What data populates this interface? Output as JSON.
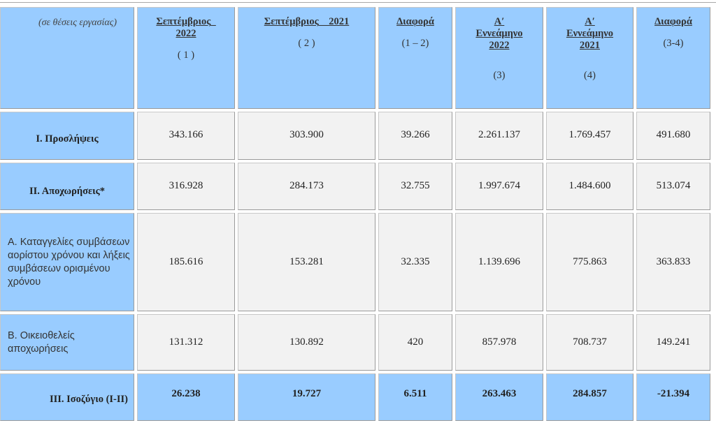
{
  "header": {
    "unit": "(σε θέσεις εργασίας)",
    "columns": [
      {
        "title": "Σεπτέμβριος_",
        "title2": "2022",
        "sub": "( 1 )"
      },
      {
        "title": "Σεπτέμβριος__2021",
        "title2": "",
        "sub": "( 2 )"
      },
      {
        "title": "Διαφορά",
        "title2": "",
        "sub": "(1 – 2)"
      },
      {
        "title": "Α′",
        "title2": "Εννεάμηνο",
        "title3": "2022",
        "sub": "(3)"
      },
      {
        "title": "Α′",
        "title2": "Εννεάμηνο",
        "title3": "2021",
        "sub": "(4)"
      },
      {
        "title": "Διαφορά",
        "title2": "",
        "sub": "(3-4)"
      }
    ]
  },
  "rows": [
    {
      "label": "Ι. Προσλήψεις",
      "values": [
        "343.166",
        "303.900",
        "39.266",
        "2.261.137",
        "1.769.457",
        "491.680"
      ]
    },
    {
      "label": "ΙΙ. Αποχωρήσεις*",
      "values": [
        "316.928",
        "284.173",
        "32.755",
        "1.997.674",
        "1.484.600",
        "513.074"
      ]
    },
    {
      "label": "Α. Καταγγελίες συμβάσεων αορίστου χρόνου  και λήξεις συμβάσεων ορισμένου χρόνου",
      "values": [
        "185.616",
        "153.281",
        "32.335",
        "1.139.696",
        "775.863",
        "363.833"
      ]
    },
    {
      "label": "Β. Οικειοθελείς αποχωρήσεις",
      "values": [
        "131.312",
        "130.892",
        "420",
        "857.978",
        "708.737",
        "149.241"
      ]
    },
    {
      "label": "ΙΙΙ. Ισοζύγιο (Ι-ΙΙ)",
      "values": [
        "26.238",
        "19.727",
        "6.511",
        "263.463",
        "284.857",
        "-21.394"
      ]
    }
  ],
  "colors": {
    "header_bg": "#99ccff",
    "cell_bg": "#f2f2f2"
  }
}
